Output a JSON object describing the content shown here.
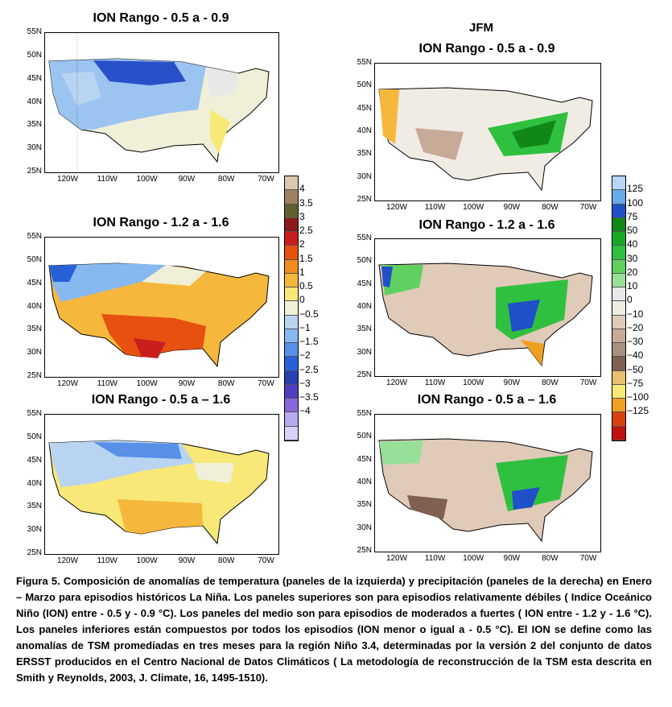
{
  "header": {
    "season": "JFM"
  },
  "panels": {
    "t1": "ION Rango - 0.5 a - 0.9",
    "t2": "ION Rango  - 1.2 a - 1.6",
    "t3": "ION Rango - 0.5 a – 1.6",
    "p1": "ION Rango - 0.5 a - 0.9",
    "p2": "ION Rango  - 1.2 a - 1.6",
    "p3": "ION Rango - 0.5 a – 1.6"
  },
  "axes": {
    "lat": [
      "55N",
      "50N",
      "45N",
      "40N",
      "35N",
      "30N",
      "25N"
    ],
    "lon": [
      "120W",
      "110W",
      "100W",
      "90W",
      "80W",
      "70W"
    ]
  },
  "temp_scale": {
    "labels": [
      "4",
      "3.5",
      "3",
      "2.5",
      "2",
      "1.5",
      "1",
      "0.5",
      "0",
      "−0.5",
      "−1",
      "−1.5",
      "−2",
      "−2.5",
      "−3",
      "−3.5",
      "−4"
    ],
    "colors": [
      "#d8c8b0",
      "#a08060",
      "#606030",
      "#8b1a1a",
      "#c81e1e",
      "#e85010",
      "#f08c20",
      "#f5b83c",
      "#f8e878",
      "#f0f0d8",
      "#b8d4f0",
      "#88b8f0",
      "#5890e8",
      "#2860d8",
      "#2840b0",
      "#5040c0",
      "#8868d8",
      "#b8a8f0",
      "#d8d0f8"
    ]
  },
  "precip_scale": {
    "labels": [
      "125",
      "100",
      "75",
      "50",
      "40",
      "30",
      "20",
      "10",
      "0",
      "−10",
      "−20",
      "−30",
      "−40",
      "−50",
      "−75",
      "−100",
      "−125"
    ],
    "colors": [
      "#b8d8f8",
      "#6aaae8",
      "#2050c8",
      "#108818",
      "#18a828",
      "#30c040",
      "#60d060",
      "#98e098",
      "#e8e8e8",
      "#f0ece4",
      "#e0cab8",
      "#c8aa98",
      "#a89080",
      "#806050",
      "#e8c070",
      "#f8e878",
      "#f0a020",
      "#d84010",
      "#c01010"
    ]
  },
  "caption": "Figura 5.   Composición de anomalías  de  temperatura (paneles de la izquierda)  y  precipitación (paneles de la derecha)  en  Enero – Marzo  para  episodios históricos  La Niña.   Los  paneles superiores son para episodios relativamente  débiles  ( Indice Oceánico Niño (ION)  entre - 0.5 y - 0.9 °C).   Los  paneles  del  medio  son  para episodios  de moderados  a  fuertes ( ION entre - 1.2 y - 1.6 °C).  Los  paneles inferiores están compuestos por todos  los episodios (ION menor o igual a - 0.5 °C).    El ION  se define como las anomalías de TSM promediadas en tres meses para la región Niño 3.4, determinadas por la versión 2 del conjunto de datos ERSST producidos en  el  Centro Nacional   de Datos Climáticos ( La metodología  de  reconstrucción  de  la TSM esta descrita en Smith y Reynolds, 2003, J. Climate, 16, 1495-1510)."
}
